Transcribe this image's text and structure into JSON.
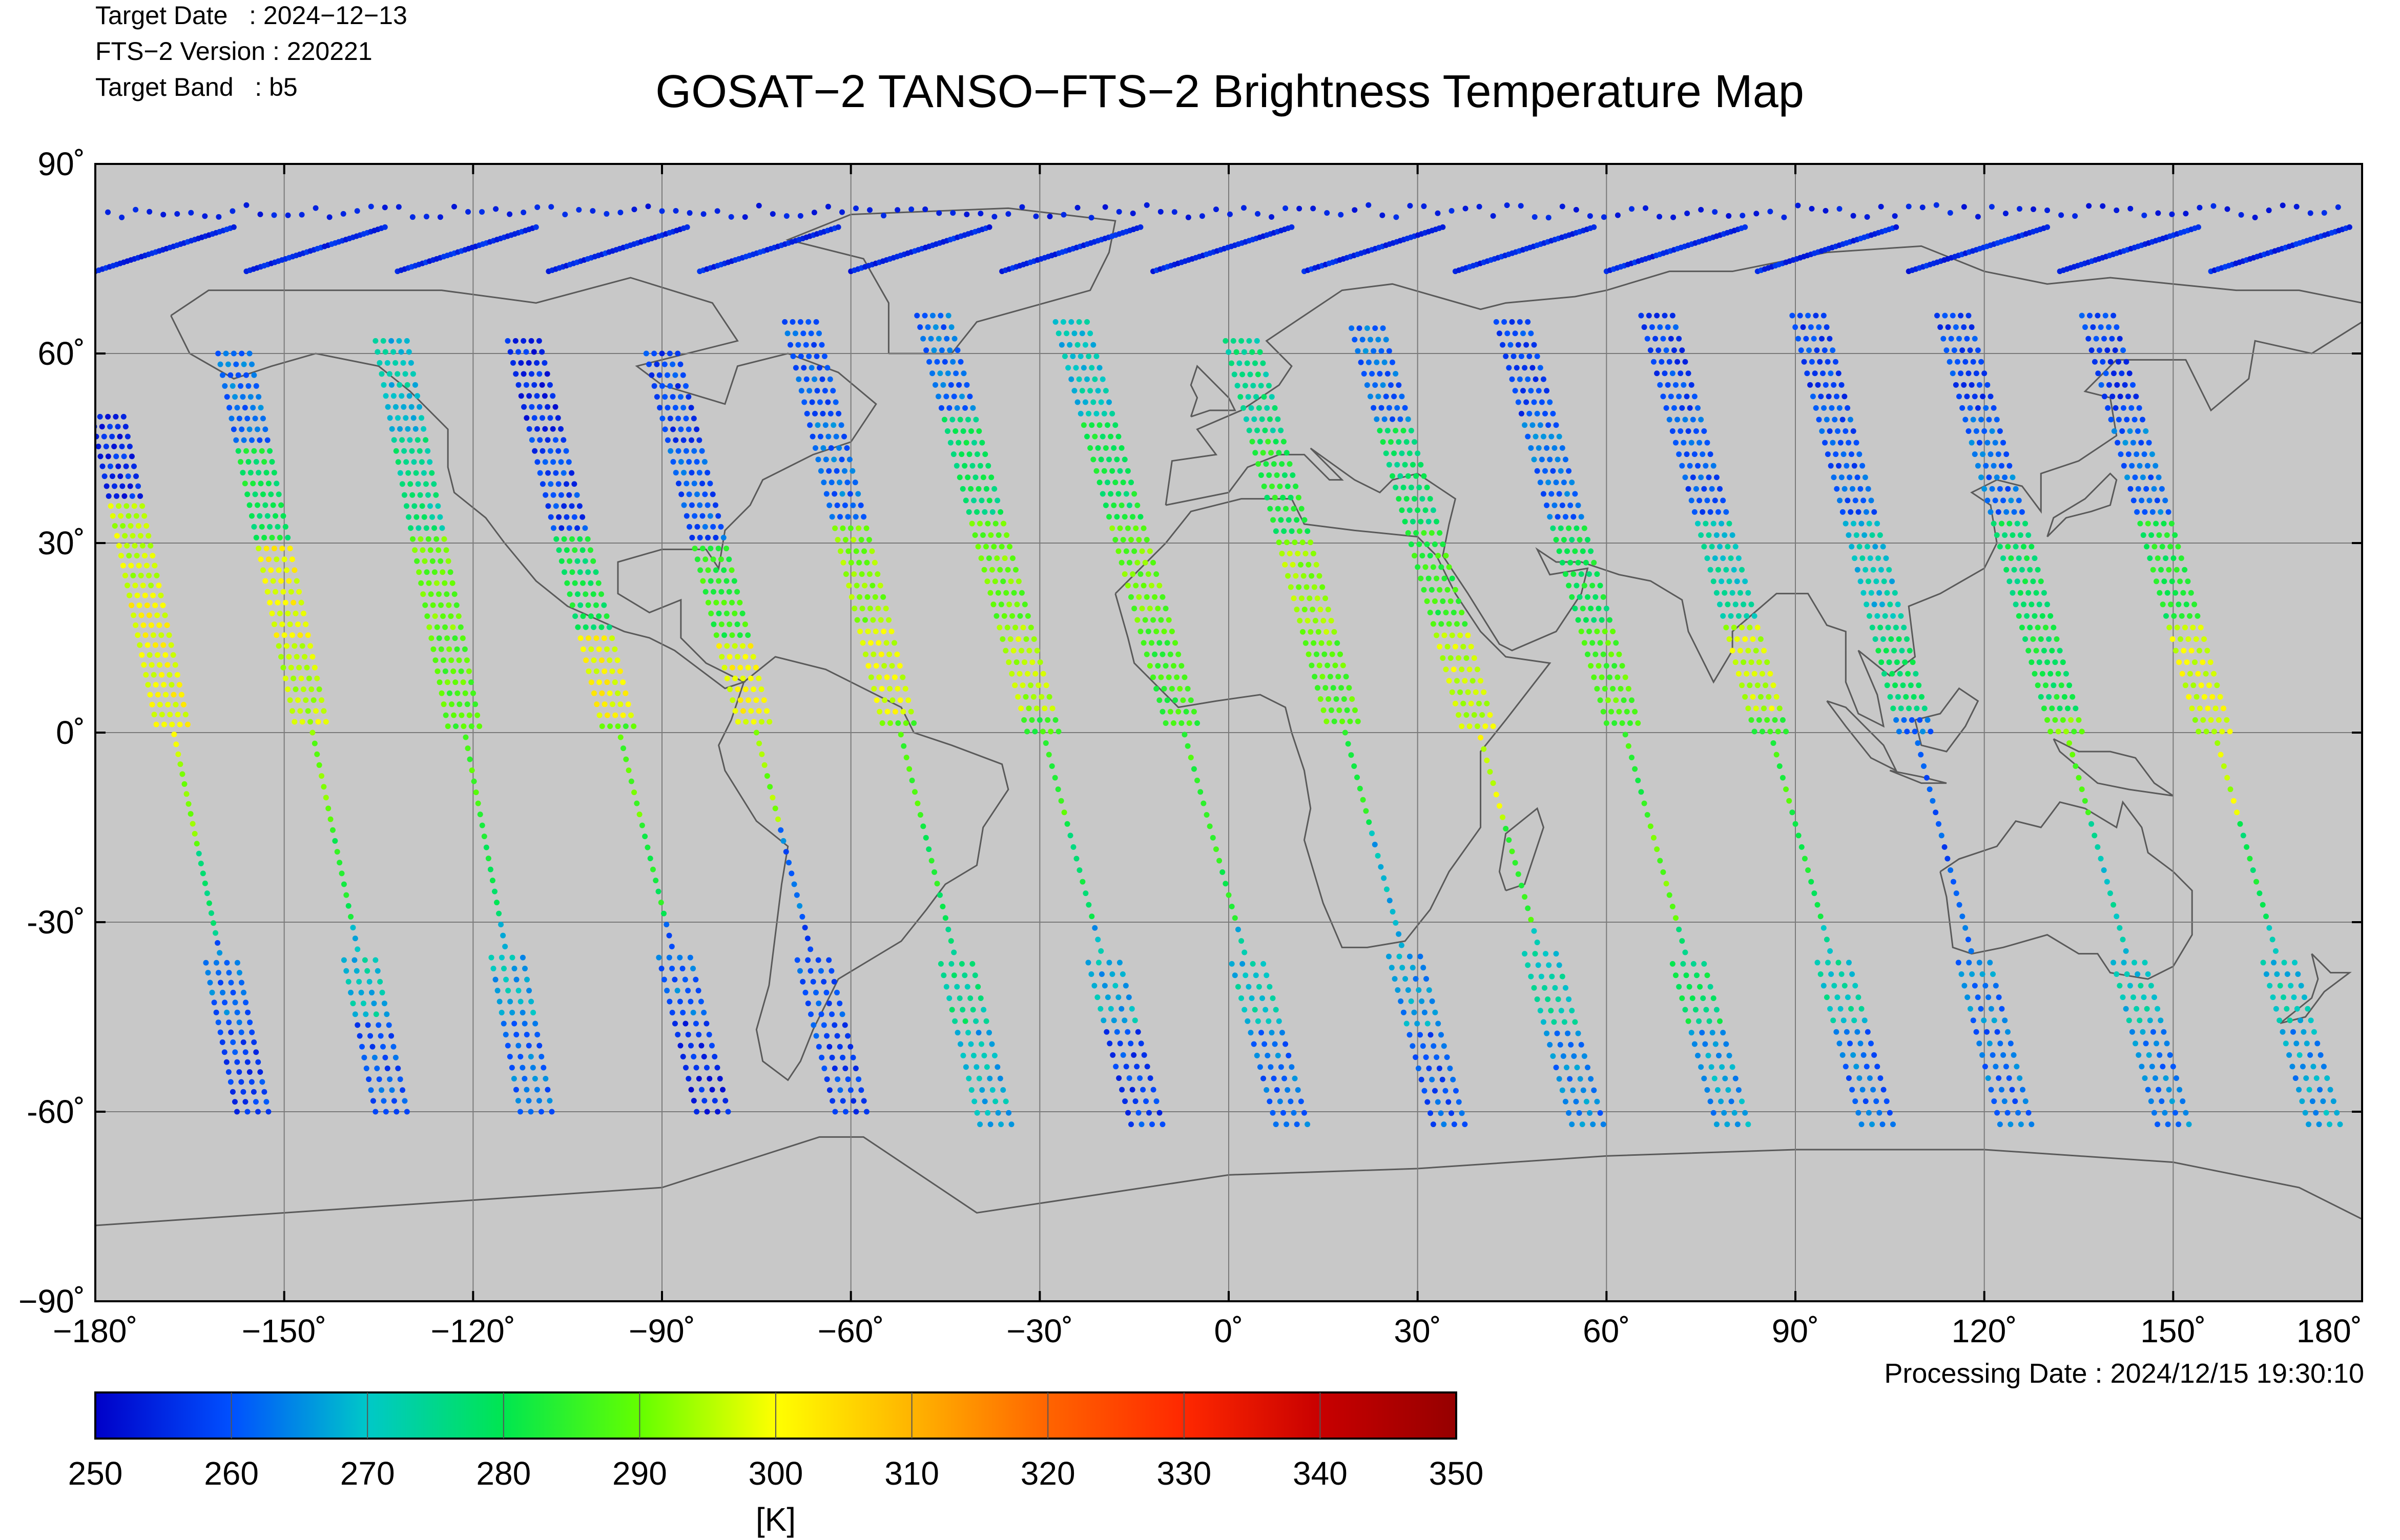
{
  "header": {
    "target_date": "Target Date   : 2024−12−13",
    "version": "FTS−2 Version : 220221",
    "target_band": "Target Band   : b5"
  },
  "processing_date": "Processing Date : 2024/12/15 19:30:10",
  "colors": {
    "land_background": "#c8c8c8",
    "coastline": "#5a5a5a",
    "grid": "#7a7a7a"
  },
  "chart_data": {
    "type": "scatter",
    "title": "GOSAT−2 TANSO−FTS−2 Brightness Temperature Map",
    "xlim": [
      -180,
      180
    ],
    "ylim": [
      -90,
      90
    ],
    "x_ticks": [
      -180,
      -150,
      -120,
      -90,
      -60,
      -30,
      0,
      30,
      60,
      90,
      120,
      150,
      180
    ],
    "x_tick_labels": [
      "−180˚",
      "−150˚",
      "−120˚",
      "−90˚",
      "−60˚",
      "−30˚",
      "0˚",
      "30˚",
      "60˚",
      "90˚",
      "120˚",
      "150˚",
      "180˚"
    ],
    "y_ticks": [
      90,
      60,
      30,
      0,
      -30,
      -60,
      -90
    ],
    "y_tick_labels": [
      "90˚",
      "60˚",
      "30˚",
      "0˚",
      "-30˚",
      "-60˚",
      "−90˚"
    ],
    "grid": true,
    "colorbar": {
      "min": 250,
      "max": 350,
      "ticks": [
        250,
        260,
        270,
        280,
        290,
        300,
        310,
        320,
        330,
        340,
        350
      ],
      "label": "[K]",
      "colormap": [
        "#0000c8",
        "#0050ff",
        "#00c8c8",
        "#00e650",
        "#64ff00",
        "#ffff00",
        "#ffb400",
        "#ff6400",
        "#ff2800",
        "#c80000",
        "#960000"
      ]
    },
    "swaths": [
      {
        "lon_north": -178,
        "lon_south": -155,
        "lat_north": 50,
        "lat_south": -60,
        "temps": [
          255,
          296,
          300,
          300,
          290,
          275,
          262,
          258
        ]
      },
      {
        "lon_north": -158,
        "lon_south": -133,
        "lat_north": 60,
        "lat_south": -60,
        "temps": [
          262,
          280,
          300,
          296,
          290,
          283,
          270,
          260
        ]
      },
      {
        "lon_north": -133,
        "lon_south": -110,
        "lat_north": 62,
        "lat_south": -60,
        "temps": [
          270,
          275,
          290,
          288,
          287,
          280,
          268,
          262
        ]
      },
      {
        "lon_north": -112,
        "lon_south": -82,
        "lat_north": 62,
        "lat_south": -60,
        "temps": [
          255,
          258,
          280,
          300,
          288,
          282,
          262,
          255
        ]
      },
      {
        "lon_north": -90,
        "lon_south": -60,
        "lat_north": 60,
        "lat_south": -60,
        "temps": [
          258,
          260,
          285,
          300,
          292,
          262,
          260,
          258
        ]
      },
      {
        "lon_north": -68,
        "lon_south": -37,
        "lat_north": 65,
        "lat_south": -62,
        "temps": [
          260,
          262,
          292,
          298,
          288,
          282,
          275,
          268
        ]
      },
      {
        "lon_north": -47,
        "lon_south": -13,
        "lat_north": 66,
        "lat_south": -62,
        "temps": [
          262,
          278,
          290,
          295,
          286,
          280,
          268,
          258
        ]
      },
      {
        "lon_north": -25,
        "lon_south": 10,
        "lat_north": 65,
        "lat_south": -62,
        "temps": [
          270,
          280,
          290,
          286,
          285,
          283,
          270,
          262
        ]
      },
      {
        "lon_north": 2,
        "lon_south": 35,
        "lat_north": 62,
        "lat_south": -62,
        "temps": [
          275,
          282,
          293,
          288,
          282,
          268,
          266,
          260
        ]
      },
      {
        "lon_north": 22,
        "lon_south": 57,
        "lat_north": 64,
        "lat_south": -62,
        "temps": [
          262,
          278,
          285,
          296,
          298,
          285,
          272,
          264
        ]
      },
      {
        "lon_north": 45,
        "lon_south": 80,
        "lat_north": 65,
        "lat_south": -62,
        "temps": [
          258,
          262,
          280,
          288,
          285,
          290,
          278,
          266
        ]
      },
      {
        "lon_north": 68,
        "lon_south": 103,
        "lat_north": 66,
        "lat_south": -62,
        "temps": [
          258,
          260,
          272,
          296,
          285,
          282,
          272,
          262
        ]
      },
      {
        "lon_north": 92,
        "lon_south": 125,
        "lat_north": 66,
        "lat_south": -62,
        "temps": [
          258,
          260,
          270,
          278,
          262,
          260,
          264,
          262
        ]
      },
      {
        "lon_north": 115,
        "lon_south": 150,
        "lat_north": 66,
        "lat_south": -62,
        "temps": [
          258,
          262,
          278,
          280,
          290,
          272,
          270,
          264
        ]
      },
      {
        "lon_north": 138,
        "lon_south": 174,
        "lat_north": 66,
        "lat_south": -62,
        "temps": [
          258,
          262,
          282,
          298,
          296,
          280,
          270,
          266
        ]
      }
    ],
    "polar_arcs_lat_north": 80,
    "polar_arcs_lat_south": 73
  }
}
